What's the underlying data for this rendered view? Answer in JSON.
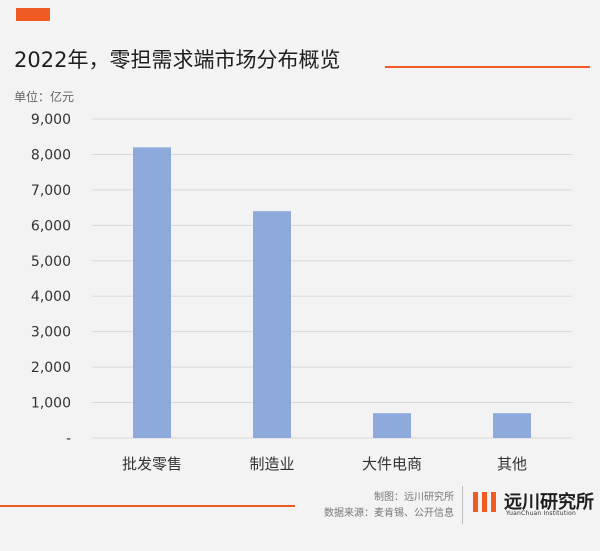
{
  "header": {
    "title": "2022年，零担需求端市场分布概览",
    "unit": "单位：亿元"
  },
  "colors": {
    "accent": "#f05a24",
    "bar": "#8eaadc",
    "grid": "#d9d9d9",
    "background": "#f3f3f3"
  },
  "chart_data": {
    "type": "bar",
    "title": "2022年，零担需求端市场分布概览",
    "ylabel": "单位：亿元",
    "categories": [
      "批发零售",
      "制造业",
      "大件电商",
      "其他"
    ],
    "values": [
      8200,
      6400,
      700,
      700
    ],
    "ylim": [
      0,
      9000
    ],
    "yticks": [
      "-",
      "1,000",
      "2,000",
      "3,000",
      "4,000",
      "5,000",
      "6,000",
      "7,000",
      "8,000",
      "9,000"
    ],
    "grid": true,
    "legend": "none"
  },
  "footer": {
    "credit_line_1": "制图：远川研究所",
    "credit_line_2": "数据来源：麦肯锡、公开信息",
    "logo_name": "远川研究所",
    "logo_subtitle": "YuanChuan Institution",
    "logo_icon": "yuanchuan-logo-icon"
  }
}
